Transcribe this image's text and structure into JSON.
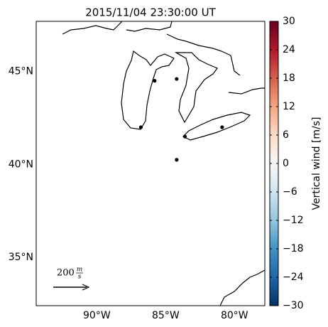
{
  "map": {
    "title": "2015/11/04 23:30:00 UT",
    "xlim": [
      -94.4,
      -77.8
    ],
    "ylim": [
      32.4,
      47.7
    ],
    "xticks": [
      {
        "value": -90,
        "label": "90°W"
      },
      {
        "value": -85,
        "label": "85°W"
      },
      {
        "value": -80,
        "label": "80°W"
      }
    ],
    "yticks": [
      {
        "value": 45,
        "label": "45°N"
      },
      {
        "value": 40,
        "label": "40°N"
      },
      {
        "value": 35,
        "label": "35°N"
      }
    ],
    "stations": [
      {
        "lon": -85.8,
        "lat": 44.5
      },
      {
        "lon": -84.2,
        "lat": 44.6
      },
      {
        "lon": -86.8,
        "lat": 42.0
      },
      {
        "lon": -83.6,
        "lat": 41.5
      },
      {
        "lon": -80.9,
        "lat": 42.0
      },
      {
        "lon": -84.2,
        "lat": 40.25
      }
    ],
    "scale": {
      "value": "200",
      "unit_num": "m",
      "unit_den": "s"
    },
    "colorbar": {
      "label": "Vertical wind [m/s]",
      "clim": [
        -30,
        30
      ],
      "colormap": [
        "#053061",
        "#2166ac",
        "#4393c3",
        "#92c5de",
        "#d1e5f0",
        "#f7f7f7",
        "#fddbc7",
        "#f4a582",
        "#d6604d",
        "#b2182b",
        "#67001f"
      ],
      "ticks": [
        {
          "value": -30,
          "label": "−30"
        },
        {
          "value": -24,
          "label": "−24"
        },
        {
          "value": -18,
          "label": "−18"
        },
        {
          "value": -12,
          "label": "−12"
        },
        {
          "value": -6,
          "label": "−6"
        },
        0,
        6,
        12,
        18,
        24,
        30
      ]
    }
  }
}
